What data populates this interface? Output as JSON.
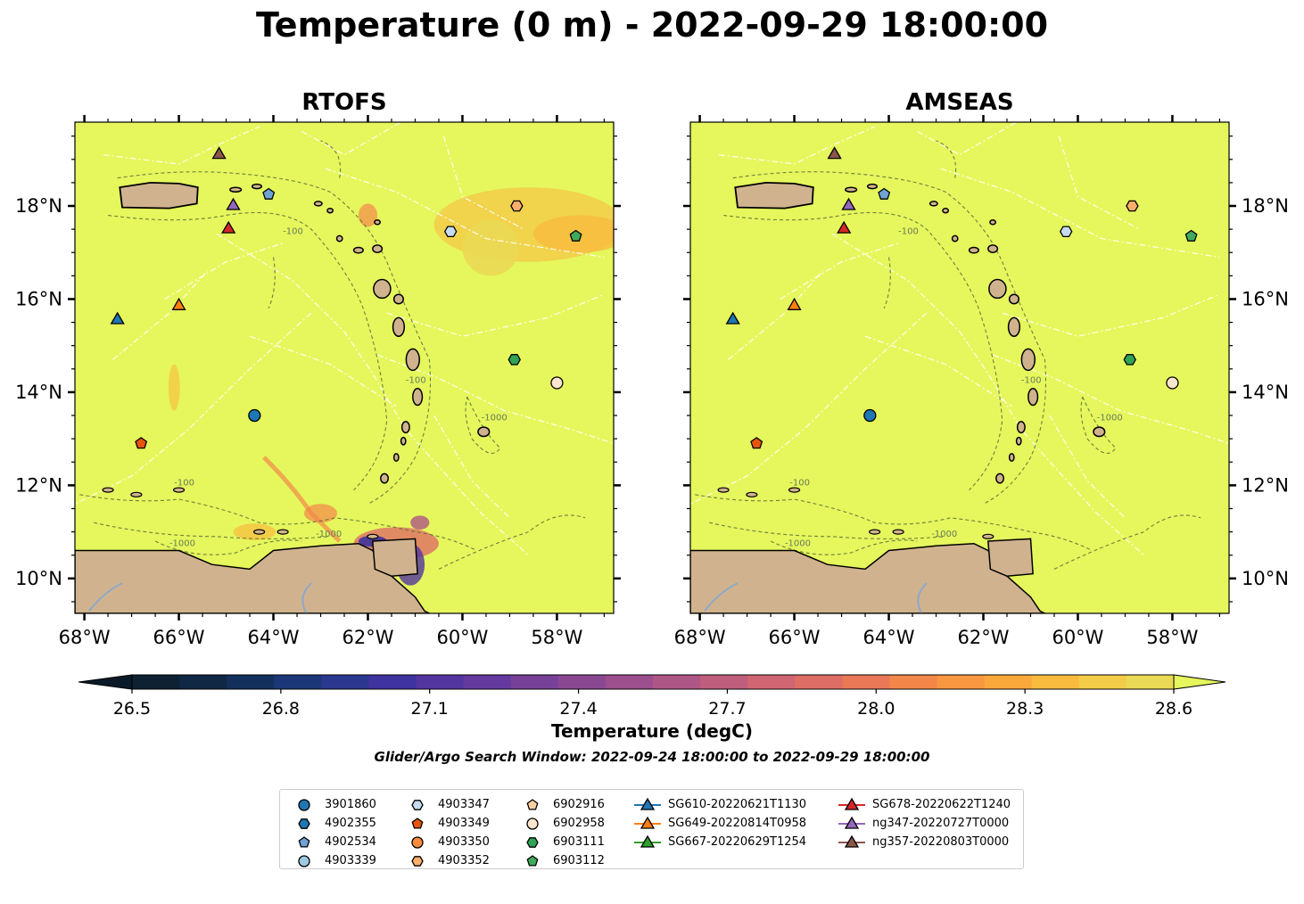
{
  "title": "Temperature (0 m) - 2022-09-29 18:00:00",
  "panels": [
    {
      "title": "RTOFS"
    },
    {
      "title": "AMSEAS"
    }
  ],
  "axes": {
    "x_ticks": [
      "68°W",
      "66°W",
      "64°W",
      "62°W",
      "60°W",
      "58°W"
    ],
    "x_values": [
      -68,
      -66,
      -64,
      -62,
      -60,
      -58
    ],
    "y_ticks": [
      "18°N",
      "16°N",
      "14°N",
      "12°N",
      "10°N"
    ],
    "y_values": [
      18,
      16,
      14,
      12,
      10
    ],
    "lon_range": [
      -68.2,
      -56.8
    ],
    "lat_range": [
      9.25,
      19.8
    ]
  },
  "colorbar": {
    "label": "Temperature (degC)",
    "ticks": [
      "26.5",
      "26.8",
      "27.1",
      "27.4",
      "27.7",
      "28.0",
      "28.3",
      "28.6"
    ],
    "tick_values": [
      26.5,
      26.8,
      27.1,
      27.4,
      27.7,
      28.0,
      28.3,
      28.6
    ],
    "range": [
      26.5,
      28.6
    ],
    "colors": [
      "#0d2133",
      "#102844",
      "#13305c",
      "#1b3778",
      "#2c3790",
      "#3e339f",
      "#52359f",
      "#653a9e",
      "#774199",
      "#8a4893",
      "#9c4e8d",
      "#ae5685",
      "#bf5e7d",
      "#cf6672",
      "#de6e65",
      "#ea7856",
      "#f3874a",
      "#f8973f",
      "#fba83b",
      "#f9bb3f",
      "#f3cd49",
      "#ead954"
    ],
    "extend_low_color": "#0b1a28",
    "extend_high_color": "#e5f75c"
  },
  "search_window": "Glider/Argo Search Window: 2022-09-24 18:00:00 to 2022-09-29 18:00:00",
  "colors": {
    "ocean": "#e5f75c",
    "land": "#d0b38e",
    "blue": "#1f77b4",
    "orange": "#ff7f0e",
    "green": "#2ca02c",
    "red": "#d62728",
    "purple": "#9467bd",
    "brown": "#8c564b"
  },
  "argo": [
    {
      "id": "3901860",
      "marker": "circle",
      "color": "#1f77b4",
      "lon": -64.4,
      "lat": 13.5
    },
    {
      "id": "4902355",
      "marker": "hexagon",
      "color": "#1f77b4",
      "lon": null,
      "lat": null
    },
    {
      "id": "4902534",
      "marker": "pentagon",
      "color": "#6fa3d4",
      "lon": -64.1,
      "lat": 18.25
    },
    {
      "id": "4903339",
      "marker": "circle",
      "color": "#9ecae1",
      "lon": null,
      "lat": null
    },
    {
      "id": "4903347",
      "marker": "hexagon",
      "color": "#c6dbef",
      "lon": -60.25,
      "lat": 17.45
    },
    {
      "id": "4903349",
      "marker": "pentagon",
      "color": "#e6550d",
      "lon": -66.8,
      "lat": 12.9
    },
    {
      "id": "4903350",
      "marker": "circle",
      "color": "#fd8d3c",
      "lon": null,
      "lat": null
    },
    {
      "id": "4903352",
      "marker": "hexagon",
      "color": "#fdae6b",
      "lon": -58.85,
      "lat": 18.0
    },
    {
      "id": "6902916",
      "marker": "pentagon",
      "color": "#fdd0a2",
      "lon": null,
      "lat": null
    },
    {
      "id": "6902958",
      "marker": "circle",
      "color": "#fee6ce",
      "lon": -58.0,
      "lat": 14.2
    },
    {
      "id": "6903111",
      "marker": "hexagon",
      "color": "#31a354",
      "lon": -58.9,
      "lat": 14.7
    },
    {
      "id": "6903112",
      "marker": "pentagon",
      "color": "#41ab5d",
      "lon": -57.6,
      "lat": 17.35
    }
  ],
  "gliders": [
    {
      "id": "SG610-20220621T1130",
      "color": "#1f77b4",
      "lon": -67.3,
      "lat": 15.55
    },
    {
      "id": "SG649-20220814T0958",
      "color": "#ff7f0e",
      "lon": -66.0,
      "lat": 15.85
    },
    {
      "id": "SG667-20220629T1254",
      "color": "#2ca02c",
      "lon": null,
      "lat": null
    },
    {
      "id": "SG678-20220622T1240",
      "color": "#d62728",
      "lon": -64.95,
      "lat": 17.5
    },
    {
      "id": "ng347-20220727T0000",
      "color": "#9467bd",
      "lon": -64.85,
      "lat": 18.0
    },
    {
      "id": "ng357-20220803T0000",
      "color": "#8c564b",
      "lon": -65.15,
      "lat": 19.1
    }
  ],
  "contour_labels": [
    "-100",
    "-1000"
  ]
}
